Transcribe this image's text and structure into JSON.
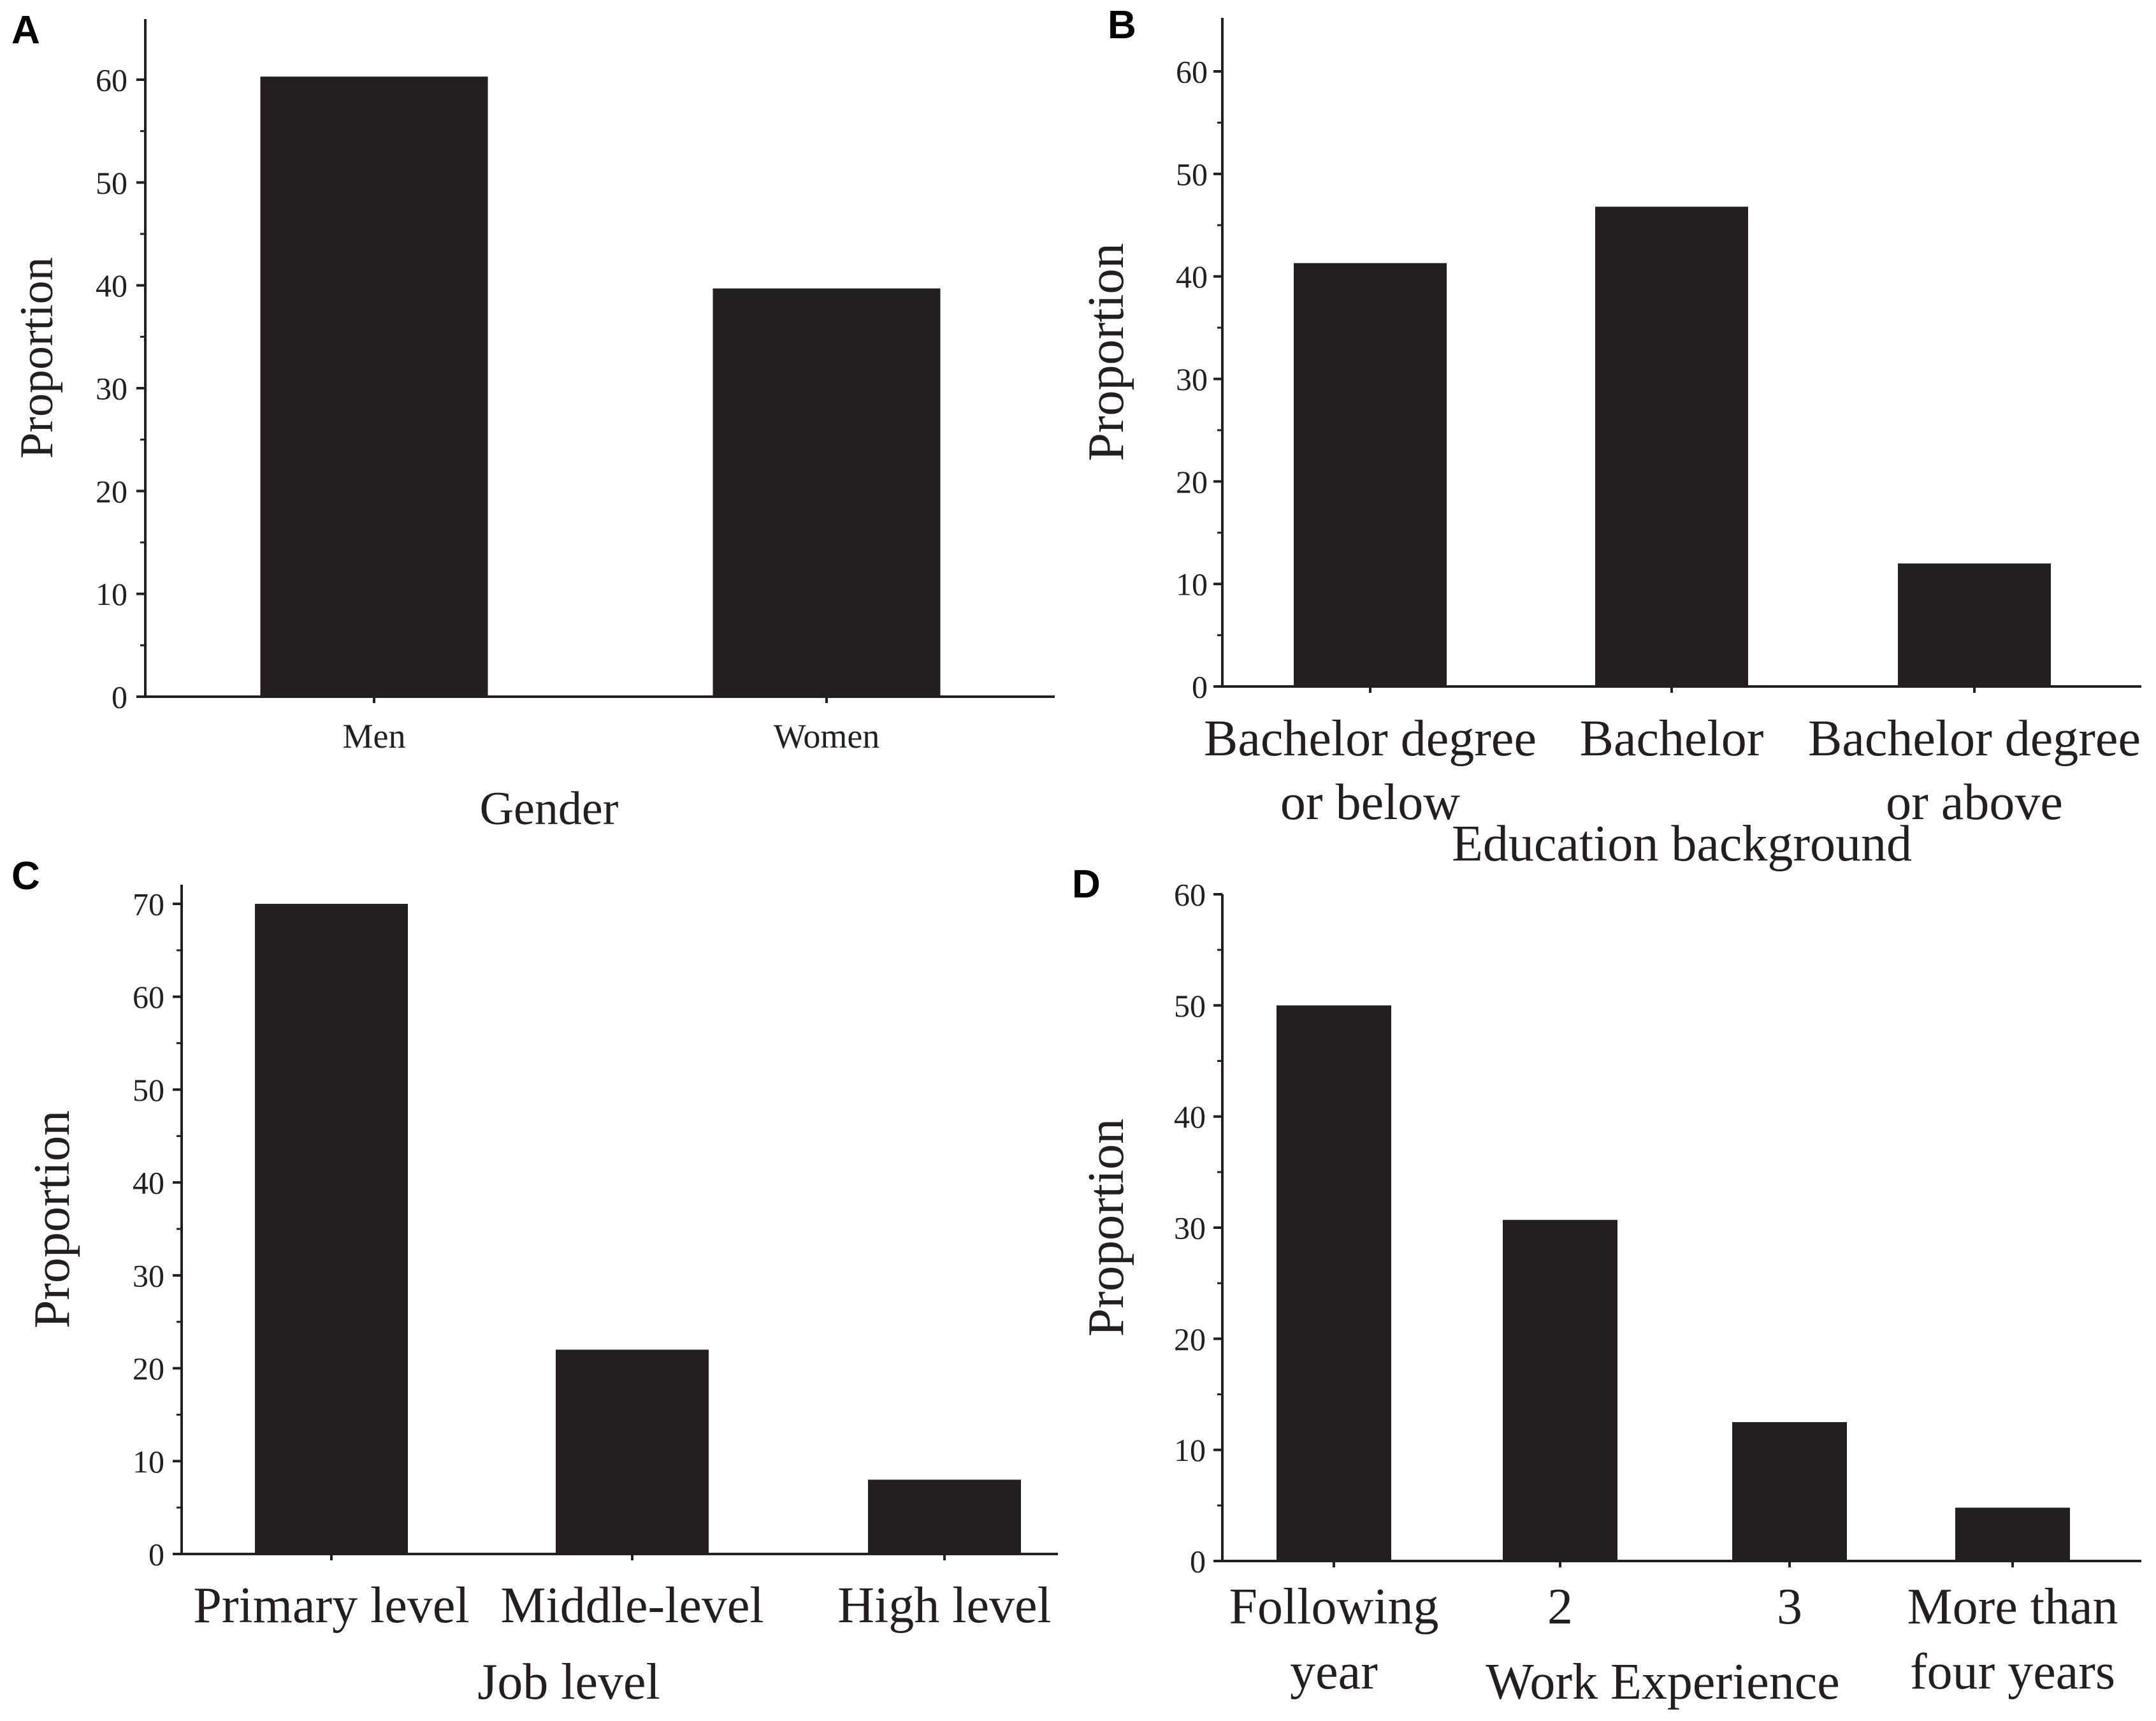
{
  "chart_data": [
    {
      "panel": "A",
      "type": "bar",
      "categories": [
        [
          "Men"
        ],
        [
          "Women"
        ]
      ],
      "values": [
        60.3,
        39.7
      ],
      "xlabel": "Gender",
      "ylabel": "Proportion",
      "ylim": [
        0,
        65
      ],
      "yticks": [
        0,
        10,
        20,
        30,
        40,
        50,
        60
      ]
    },
    {
      "panel": "B",
      "type": "bar",
      "categories": [
        [
          "Bachelor degree",
          "or below"
        ],
        [
          "Bachelor"
        ],
        [
          "Bachelor degree",
          "or above"
        ]
      ],
      "values": [
        41.3,
        46.8,
        12.0
      ],
      "xlabel": "Education background",
      "ylabel": "Proportion",
      "ylim": [
        0,
        65
      ],
      "yticks": [
        0,
        10,
        20,
        30,
        40,
        50,
        60
      ]
    },
    {
      "panel": "C",
      "type": "bar",
      "categories": [
        [
          "Primary level"
        ],
        [
          "Middle-level"
        ],
        [
          "High level"
        ]
      ],
      "values": [
        70.0,
        22.0,
        8.0
      ],
      "xlabel": "Job level",
      "ylabel": "Proportion",
      "ylim": [
        0,
        72
      ],
      "yticks": [
        0,
        10,
        20,
        30,
        40,
        50,
        60,
        70
      ]
    },
    {
      "panel": "D",
      "type": "bar",
      "categories": [
        [
          "Following",
          "year"
        ],
        [
          "2"
        ],
        [
          "3"
        ],
        [
          "More than",
          "four years"
        ]
      ],
      "values": [
        50.0,
        30.7,
        12.5,
        4.8
      ],
      "xlabel": "Work Experience",
      "ylabel": "Proportion",
      "ylim": [
        0,
        60
      ],
      "yticks": [
        0,
        10,
        20,
        30,
        40,
        50,
        60
      ]
    }
  ]
}
